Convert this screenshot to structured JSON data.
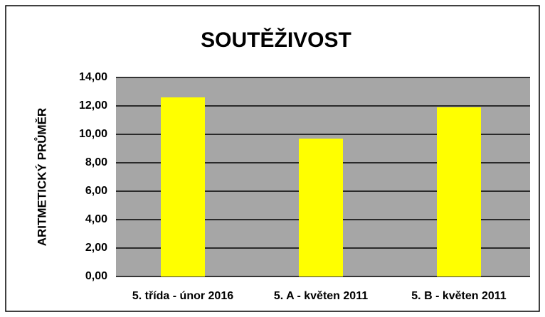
{
  "chart_data": {
    "type": "bar",
    "title": "SOUTĚŽIVOST",
    "y_label": "ARITMETICKÝ PRŮMĚR",
    "categories": [
      "5. třída - únor 2016",
      "5. A - květen 2011",
      "5. B - květen 2011"
    ],
    "values": [
      12.6,
      9.7,
      11.9
    ],
    "color": "#ffff00",
    "plot_background": "#a6a6a6",
    "ylim": [
      0,
      14
    ],
    "yticks": [
      {
        "value": 0,
        "label": "0,00"
      },
      {
        "value": 2,
        "label": "2,00"
      },
      {
        "value": 4,
        "label": "4,00"
      },
      {
        "value": 6,
        "label": "6,00"
      },
      {
        "value": 8,
        "label": "8,00"
      },
      {
        "value": 10,
        "label": "10,00"
      },
      {
        "value": 12,
        "label": "12,00"
      },
      {
        "value": 14,
        "label": "14,00"
      }
    ],
    "grid": true
  }
}
